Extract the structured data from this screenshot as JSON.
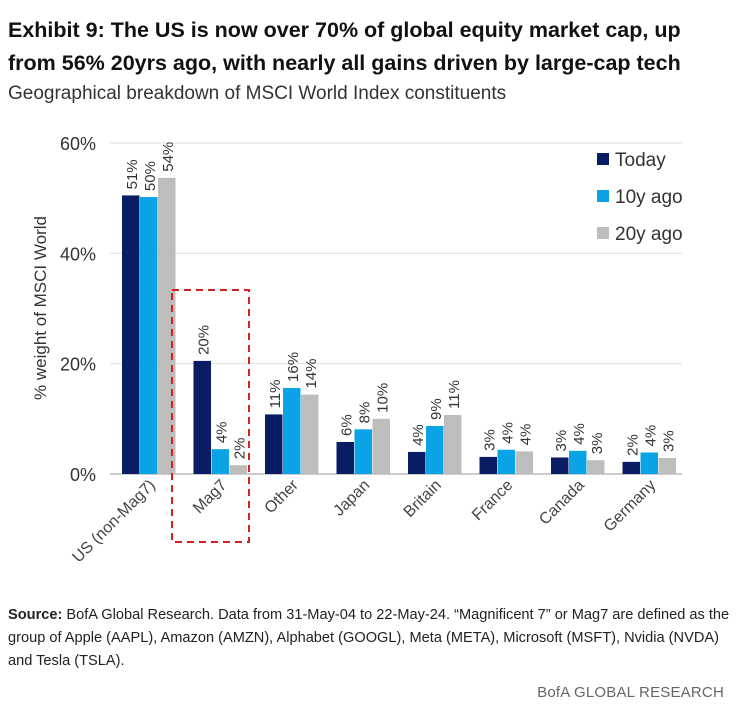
{
  "header": {
    "title": "Exhibit 9: The US is now over 70% of global equity market cap, up from 56% 20yrs ago, with nearly all gains driven by large-cap tech",
    "subtitle": "Geographical breakdown of MSCI World Index constituents"
  },
  "chart_data": {
    "type": "bar",
    "categories": [
      "US (non-Mag7)",
      "Mag7",
      "Other",
      "Japan",
      "Britain",
      "France",
      "Canada",
      "Germany"
    ],
    "series": [
      {
        "name": "Today",
        "color": "#0a1d64",
        "values": [
          50.5,
          20.5,
          10.8,
          5.8,
          4.0,
          3.1,
          3.0,
          2.2
        ],
        "labels": [
          "51%",
          "20%",
          "11%",
          "6%",
          "4%",
          "3%",
          "3%",
          "2%"
        ]
      },
      {
        "name": "10y ago",
        "color": "#0aa4e6",
        "values": [
          50.2,
          4.5,
          15.6,
          8.1,
          8.7,
          4.4,
          4.2,
          3.9
        ],
        "labels": [
          "50%",
          "4%",
          "16%",
          "8%",
          "9%",
          "4%",
          "4%",
          "4%"
        ]
      },
      {
        "name": "20y ago",
        "color": "#bdbdbd",
        "values": [
          53.7,
          1.6,
          14.4,
          10.0,
          10.7,
          4.1,
          2.5,
          2.9
        ],
        "labels": [
          "54%",
          "2%",
          "14%",
          "10%",
          "11%",
          "4%",
          "3%",
          "3%"
        ]
      }
    ],
    "ylabel": "% weight of MSCI World",
    "ylim": [
      0,
      60
    ],
    "yticks": [
      0,
      20,
      40,
      60
    ],
    "ytick_labels": [
      "0%",
      "20%",
      "40%",
      "60%"
    ],
    "highlight_category": "Mag7",
    "legend_position": "top-right"
  },
  "footer": {
    "source_label": "Source:",
    "source_text": " BofA Global Research. Data from 31-May-04 to 22-May-24. “Magnificent 7” or Mag7 are defined as the group of Apple (AAPL), Amazon (AMZN), Alphabet (GOOGL), Meta (META), Microsoft (MSFT), Nvidia (NVDA) and Tesla (TSLA).",
    "brand": "BofA GLOBAL RESEARCH"
  }
}
